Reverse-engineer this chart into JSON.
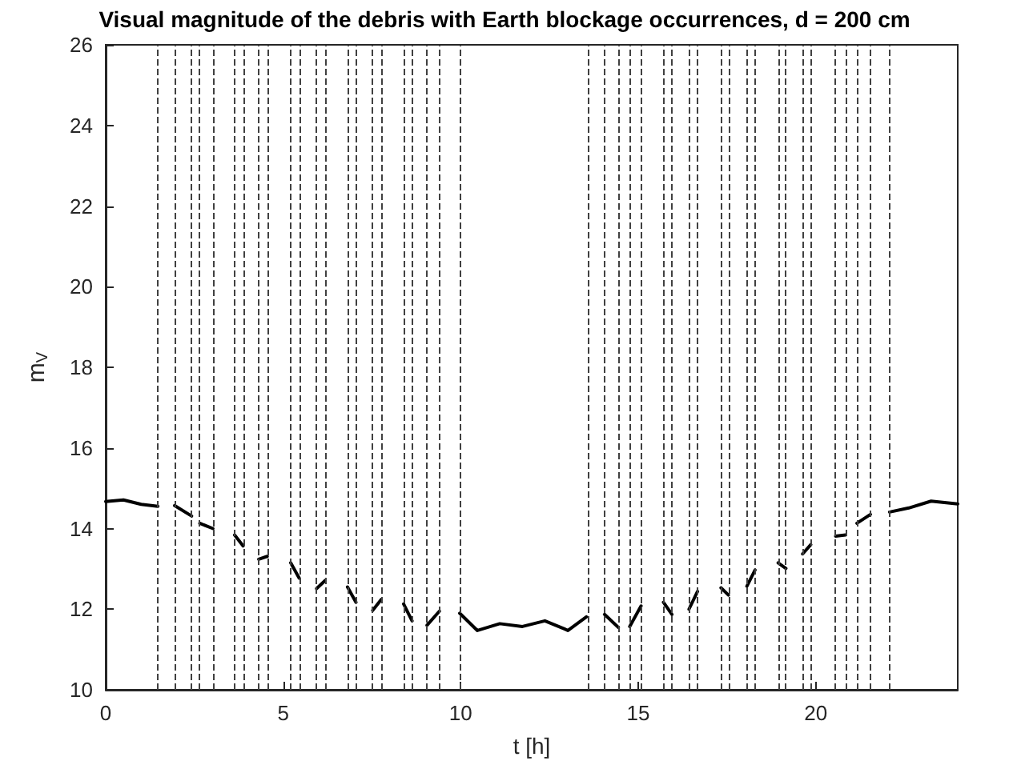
{
  "chart_data": {
    "type": "line",
    "title": "Visual magnitude of the debris with Earth blockage occurrences, d = 200 cm",
    "xlabel": "t [h]",
    "ylabel": "m$_{V}$",
    "series": [
      {
        "color": "#000000",
        "x": [
          0,
          0.5,
          1,
          1.47,
          1.7,
          1.94,
          2.42,
          2.55,
          2.65,
          3.02,
          3.3,
          3.63,
          3.87,
          4.1,
          4.31,
          4.55,
          4.9,
          5.21,
          5.45,
          5.7,
          5.94,
          6.18,
          6.5,
          6.81,
          7.05,
          7.3,
          7.52,
          7.76,
          8.1,
          8.39,
          8.63,
          8.85,
          9.05,
          9.4,
          9.7,
          9.97,
          10.47,
          11.1,
          11.74,
          12.37,
          12.92,
          13.02,
          13.54,
          13.8,
          14.05,
          14.44,
          14.6,
          14.76,
          15.08,
          15.4,
          15.71,
          15.95,
          16.2,
          16.43,
          16.67,
          17.0,
          17.33,
          17.54,
          17.8,
          18.06,
          18.29,
          18.6,
          18.94,
          19.16,
          19.4,
          19.63,
          19.86,
          20.2,
          20.56,
          20.84,
          21.0,
          21.16,
          21.54,
          21.8,
          22.08,
          22.62,
          23.25,
          24
        ],
        "values": [
          14.67,
          14.71,
          14.6,
          14.55,
          null,
          14.57,
          14.31,
          null,
          14.13,
          14.0,
          null,
          13.84,
          13.57,
          null,
          13.24,
          13.31,
          null,
          13.15,
          12.77,
          null,
          12.51,
          12.71,
          null,
          12.55,
          12.17,
          null,
          11.97,
          12.24,
          null,
          12.13,
          11.71,
          null,
          11.6,
          11.95,
          null,
          11.9,
          11.47,
          11.64,
          11.57,
          11.71,
          11.51,
          11.47,
          11.81,
          null,
          11.87,
          11.55,
          null,
          11.57,
          12.08,
          null,
          12.17,
          11.87,
          null,
          12.0,
          12.44,
          null,
          12.53,
          12.35,
          null,
          12.57,
          12.97,
          null,
          13.15,
          13.01,
          null,
          13.37,
          13.6,
          null,
          13.81,
          13.84,
          null,
          14.13,
          14.35,
          null,
          14.41,
          14.51,
          14.68,
          14.61
        ]
      }
    ],
    "xlim": [
      0,
      24
    ],
    "xticks": [
      0,
      5,
      10,
      15,
      20
    ],
    "ylim": [
      10,
      26
    ],
    "yticks": [
      10,
      12,
      14,
      16,
      18,
      20,
      22,
      24,
      26
    ],
    "grid": false,
    "marker": "none",
    "line_style": "solid",
    "ref_lines": [
      {
        "axis": "x",
        "value": 1.47,
        "color": "#404040",
        "line_style": "dashed"
      },
      {
        "axis": "x",
        "value": 1.94,
        "color": "#404040",
        "line_style": "dashed"
      },
      {
        "axis": "x",
        "value": 2.42,
        "color": "#404040",
        "line_style": "dashed"
      },
      {
        "axis": "x",
        "value": 2.65,
        "color": "#404040",
        "line_style": "dashed"
      },
      {
        "axis": "x",
        "value": 3.02,
        "color": "#404040",
        "line_style": "dashed"
      },
      {
        "axis": "x",
        "value": 3.63,
        "color": "#404040",
        "line_style": "dashed"
      },
      {
        "axis": "x",
        "value": 3.87,
        "color": "#404040",
        "line_style": "dashed"
      },
      {
        "axis": "x",
        "value": 4.31,
        "color": "#404040",
        "line_style": "dashed"
      },
      {
        "axis": "x",
        "value": 4.55,
        "color": "#404040",
        "line_style": "dashed"
      },
      {
        "axis": "x",
        "value": 5.21,
        "color": "#404040",
        "line_style": "dashed"
      },
      {
        "axis": "x",
        "value": 5.45,
        "color": "#404040",
        "line_style": "dashed"
      },
      {
        "axis": "x",
        "value": 5.94,
        "color": "#404040",
        "line_style": "dashed"
      },
      {
        "axis": "x",
        "value": 6.18,
        "color": "#404040",
        "line_style": "dashed"
      },
      {
        "axis": "x",
        "value": 6.81,
        "color": "#404040",
        "line_style": "dashed"
      },
      {
        "axis": "x",
        "value": 7.05,
        "color": "#404040",
        "line_style": "dashed"
      },
      {
        "axis": "x",
        "value": 7.52,
        "color": "#404040",
        "line_style": "dashed"
      },
      {
        "axis": "x",
        "value": 7.76,
        "color": "#404040",
        "line_style": "dashed"
      },
      {
        "axis": "x",
        "value": 8.39,
        "color": "#404040",
        "line_style": "dashed"
      },
      {
        "axis": "x",
        "value": 8.63,
        "color": "#404040",
        "line_style": "dashed"
      },
      {
        "axis": "x",
        "value": 9.05,
        "color": "#404040",
        "line_style": "dashed"
      },
      {
        "axis": "x",
        "value": 9.4,
        "color": "#404040",
        "line_style": "dashed"
      },
      {
        "axis": "x",
        "value": 9.97,
        "color": "#404040",
        "line_style": "dashed"
      },
      {
        "axis": "x",
        "value": 13.57,
        "color": "#404040",
        "line_style": "dashed"
      },
      {
        "axis": "x",
        "value": 14.05,
        "color": "#404040",
        "line_style": "dashed"
      },
      {
        "axis": "x",
        "value": 14.44,
        "color": "#404040",
        "line_style": "dashed"
      },
      {
        "axis": "x",
        "value": 14.76,
        "color": "#404040",
        "line_style": "dashed"
      },
      {
        "axis": "x",
        "value": 15.08,
        "color": "#404040",
        "line_style": "dashed"
      },
      {
        "axis": "x",
        "value": 15.71,
        "color": "#404040",
        "line_style": "dashed"
      },
      {
        "axis": "x",
        "value": 15.95,
        "color": "#404040",
        "line_style": "dashed"
      },
      {
        "axis": "x",
        "value": 16.43,
        "color": "#404040",
        "line_style": "dashed"
      },
      {
        "axis": "x",
        "value": 16.67,
        "color": "#404040",
        "line_style": "dashed"
      },
      {
        "axis": "x",
        "value": 17.33,
        "color": "#404040",
        "line_style": "dashed"
      },
      {
        "axis": "x",
        "value": 17.54,
        "color": "#404040",
        "line_style": "dashed"
      },
      {
        "axis": "x",
        "value": 18.06,
        "color": "#404040",
        "line_style": "dashed"
      },
      {
        "axis": "x",
        "value": 18.29,
        "color": "#404040",
        "line_style": "dashed"
      },
      {
        "axis": "x",
        "value": 18.94,
        "color": "#404040",
        "line_style": "dashed"
      },
      {
        "axis": "x",
        "value": 19.16,
        "color": "#404040",
        "line_style": "dashed"
      },
      {
        "axis": "x",
        "value": 19.63,
        "color": "#404040",
        "line_style": "dashed"
      },
      {
        "axis": "x",
        "value": 19.86,
        "color": "#404040",
        "line_style": "dashed"
      },
      {
        "axis": "x",
        "value": 20.56,
        "color": "#404040",
        "line_style": "dashed"
      },
      {
        "axis": "x",
        "value": 20.84,
        "color": "#404040",
        "line_style": "dashed"
      },
      {
        "axis": "x",
        "value": 21.16,
        "color": "#404040",
        "line_style": "dashed"
      },
      {
        "axis": "x",
        "value": 21.54,
        "color": "#404040",
        "line_style": "dashed"
      },
      {
        "axis": "x",
        "value": 22.08,
        "color": "#404040",
        "line_style": "dashed"
      }
    ]
  }
}
